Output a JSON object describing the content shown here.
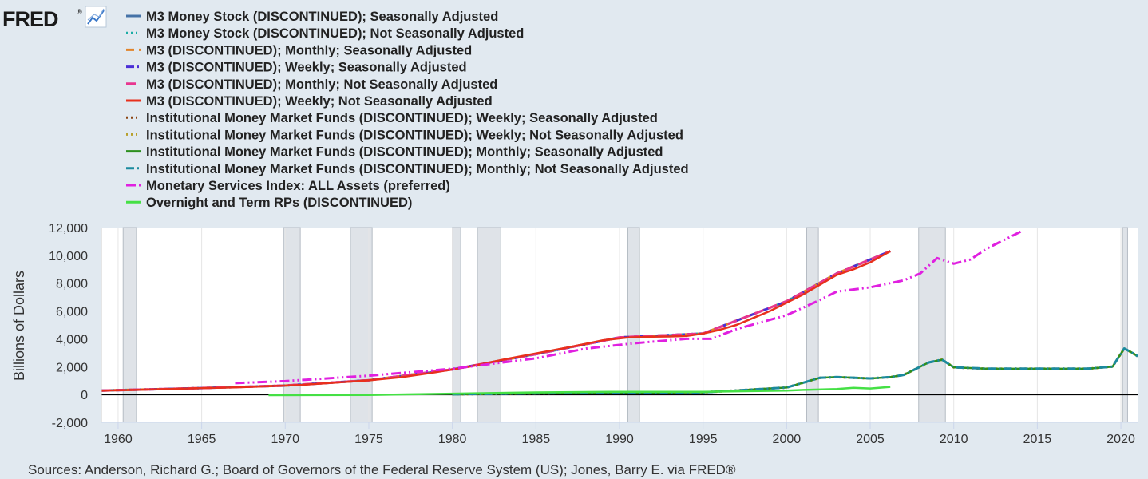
{
  "logo": {
    "text": "FRED",
    "mark": "®",
    "icon": "line-chart-icon"
  },
  "source_text": "Sources: Anderson, Richard G.; Board of Governors of the Federal Reserve System (US); Jones, Barry E. via FRED®",
  "chart_data": {
    "type": "line",
    "title": "",
    "xlabel": "",
    "ylabel": "Billions of Dollars",
    "xlim": [
      1959.0,
      2021.0
    ],
    "ylim": [
      -2000,
      12000
    ],
    "y_ticks": [
      -2000,
      0,
      2000,
      4000,
      6000,
      8000,
      10000,
      12000
    ],
    "y_tick_labels": [
      "-2,000",
      "0",
      "2,000",
      "4,000",
      "6,000",
      "8,000",
      "10,000",
      "12,000"
    ],
    "x_ticks": [
      1960,
      1965,
      1970,
      1975,
      1980,
      1985,
      1990,
      1995,
      2000,
      2005,
      2010,
      2015,
      2020
    ],
    "x_tick_labels": [
      "1960",
      "1965",
      "1970",
      "1975",
      "1980",
      "1985",
      "1990",
      "1995",
      "2000",
      "2005",
      "2010",
      "2015",
      "2020"
    ],
    "grid": "vertical",
    "legend_position": "top",
    "recessions": [
      [
        1960.3,
        1961.1
      ],
      [
        1969.9,
        1970.9
      ],
      [
        1973.9,
        1975.2
      ],
      [
        1980.0,
        1980.5
      ],
      [
        1981.5,
        1982.9
      ],
      [
        1990.5,
        1991.2
      ],
      [
        2001.2,
        2001.9
      ],
      [
        2007.9,
        2009.5
      ],
      [
        2020.1,
        2020.4
      ]
    ],
    "series": [
      {
        "name": "M3 Money Stock (DISCONTINUED); Seasonally Adjusted",
        "color": "#4572a7",
        "dash": "solid",
        "x": [
          1959,
          1965,
          1970,
          1975,
          1980,
          1985,
          1990,
          1995,
          2000,
          2003,
          2006.2
        ],
        "y": [
          280,
          460,
          640,
          1020,
          1800,
          2900,
          4100,
          4380,
          6700,
          8700,
          10300
        ]
      },
      {
        "name": "M3 Money Stock (DISCONTINUED); Not Seasonally Adjusted",
        "color": "#1aada5",
        "dash": "dot",
        "x": [
          1959,
          1965,
          1970,
          1975,
          1980,
          1985,
          1990,
          1995,
          2000,
          2003,
          2006.2
        ],
        "y": [
          285,
          465,
          645,
          1025,
          1805,
          2905,
          4105,
          4385,
          6705,
          8705,
          10305
        ]
      },
      {
        "name": "M3 (DISCONTINUED); Monthly; Seasonally Adjusted",
        "color": "#e1842a",
        "dash": "dash",
        "x": [
          1959,
          1965,
          1970,
          1975,
          1980,
          1985,
          1990,
          1995,
          2000,
          2003,
          2006.2
        ],
        "y": [
          282,
          462,
          642,
          1022,
          1802,
          2902,
          4102,
          4382,
          6702,
          8702,
          10302
        ]
      },
      {
        "name": "M3 (DISCONTINUED); Weekly; Seasonally Adjusted",
        "color": "#4b2fd6",
        "dash": "dashdot",
        "x": [
          1959,
          1965,
          1970,
          1975,
          1980,
          1985,
          1990,
          1995,
          2000,
          2003,
          2006.2
        ],
        "y": [
          281,
          461,
          641,
          1021,
          1801,
          2901,
          4101,
          4381,
          6701,
          8701,
          10301
        ]
      },
      {
        "name": "M3 (DISCONTINUED); Monthly; Not Seasonally Adjusted",
        "color": "#e8368f",
        "dash": "longdash",
        "x": [
          1959,
          1965,
          1970,
          1975,
          1980,
          1985,
          1990,
          1995,
          2000,
          2003,
          2006.2
        ],
        "y": [
          283,
          463,
          643,
          1023,
          1803,
          2903,
          4103,
          4383,
          6703,
          8703,
          10303
        ]
      },
      {
        "name": "M3 (DISCONTINUED); Weekly; Not Seasonally Adjusted",
        "color": "#e8301c",
        "dash": "solid",
        "x": [
          1959,
          1961,
          1963,
          1965,
          1967,
          1969,
          1971,
          1973,
          1975,
          1977,
          1979,
          1981,
          1983,
          1985,
          1987,
          1989,
          1990.5,
          1992,
          1993,
          1994,
          1995,
          1996,
          1997,
          1998,
          1999,
          2000,
          2001,
          2002,
          2003,
          2004,
          2005,
          2006.2
        ],
        "y": [
          280,
          330,
          400,
          460,
          510,
          600,
          690,
          850,
          1020,
          1250,
          1600,
          2000,
          2500,
          2950,
          3400,
          3900,
          4100,
          4150,
          4170,
          4200,
          4380,
          4650,
          5000,
          5500,
          6000,
          6600,
          7200,
          7900,
          8600,
          9000,
          9500,
          10300
        ]
      },
      {
        "name": "Institutional Money Market Funds (DISCONTINUED); Weekly; Seasonally Adjusted",
        "color": "#8b4513",
        "dash": "dot",
        "x": [
          1980,
          1985,
          1990,
          1995,
          2000,
          2002,
          2003,
          2005,
          2006.2,
          2007,
          2008.5,
          2009.3,
          2010,
          2012,
          2015,
          2018,
          2019.5,
          2020.2,
          2020.6,
          2021
        ],
        "y": [
          10,
          80,
          120,
          150,
          500,
          1200,
          1250,
          1150,
          1250,
          1400,
          2300,
          2500,
          1950,
          1850,
          1850,
          1850,
          2000,
          3300,
          3050,
          2750
        ]
      },
      {
        "name": "Institutional Money Market Funds (DISCONTINUED); Weekly; Not Seasonally Adjusted",
        "color": "#b8a02c",
        "dash": "dot",
        "x": [
          1980,
          1985,
          1990,
          1995,
          2000,
          2002,
          2003,
          2005,
          2006.2,
          2007,
          2008.5,
          2009.3,
          2010,
          2012,
          2015,
          2018,
          2019.5,
          2020.2,
          2020.6,
          2021
        ],
        "y": [
          12,
          82,
          122,
          152,
          502,
          1202,
          1252,
          1152,
          1252,
          1402,
          2302,
          2502,
          1952,
          1852,
          1852,
          1852,
          2002,
          3302,
          3052,
          2752
        ]
      },
      {
        "name": "Institutional Money Market Funds (DISCONTINUED); Monthly; Seasonally Adjusted",
        "color": "#2c8f1e",
        "dash": "solid",
        "x": [
          1980,
          1985,
          1990,
          1995,
          2000,
          2002,
          2003,
          2005,
          2006.2,
          2007,
          2008.5,
          2009.3,
          2010,
          2012,
          2015,
          2018,
          2019.5,
          2020.2,
          2020.6,
          2021
        ],
        "y": [
          11,
          81,
          121,
          151,
          501,
          1201,
          1251,
          1151,
          1251,
          1401,
          2301,
          2501,
          1951,
          1851,
          1851,
          1851,
          2001,
          3301,
          3051,
          2751
        ]
      },
      {
        "name": "Institutional Money Market Funds (DISCONTINUED); Monthly; Not Seasonally Adjusted",
        "color": "#1b8a9e",
        "dash": "dashdot",
        "x": [
          1980,
          1985,
          1990,
          1995,
          2000,
          2002,
          2003,
          2005,
          2006.2,
          2007,
          2008.5,
          2009.3,
          2010,
          2012,
          2015,
          2018,
          2019.5,
          2020.2,
          2020.6,
          2021
        ],
        "y": [
          13,
          83,
          123,
          153,
          503,
          1203,
          1253,
          1153,
          1253,
          1403,
          2303,
          2503,
          1953,
          1853,
          1853,
          1853,
          2003,
          3303,
          3053,
          2753
        ]
      },
      {
        "name": "Monetary Services Index: ALL Assets (preferred)",
        "color": "#e020e0",
        "dash": "dashdotdot",
        "x": [
          1967,
          1970,
          1975,
          1980,
          1985,
          1988,
          1991,
          1994,
          1995.5,
          1997,
          2000,
          2002,
          2003,
          2005,
          2007,
          2008,
          2009,
          2010,
          2011,
          2012,
          2013,
          2014
        ],
        "y": [
          820,
          960,
          1350,
          1850,
          2600,
          3300,
          3700,
          4000,
          4000,
          4700,
          5700,
          6800,
          7400,
          7700,
          8200,
          8700,
          9800,
          9400,
          9700,
          10500,
          11100,
          11700
        ]
      },
      {
        "name": "Overnight and Term RPs (DISCONTINUED)",
        "color": "#45e045",
        "dash": "solid",
        "x": [
          1969,
          1975,
          1980,
          1985,
          1990,
          1995,
          2000,
          2001,
          2003,
          2004,
          2005,
          2006.2
        ],
        "y": [
          -50,
          -30,
          60,
          150,
          200,
          200,
          280,
          330,
          400,
          480,
          430,
          550
        ]
      }
    ]
  }
}
